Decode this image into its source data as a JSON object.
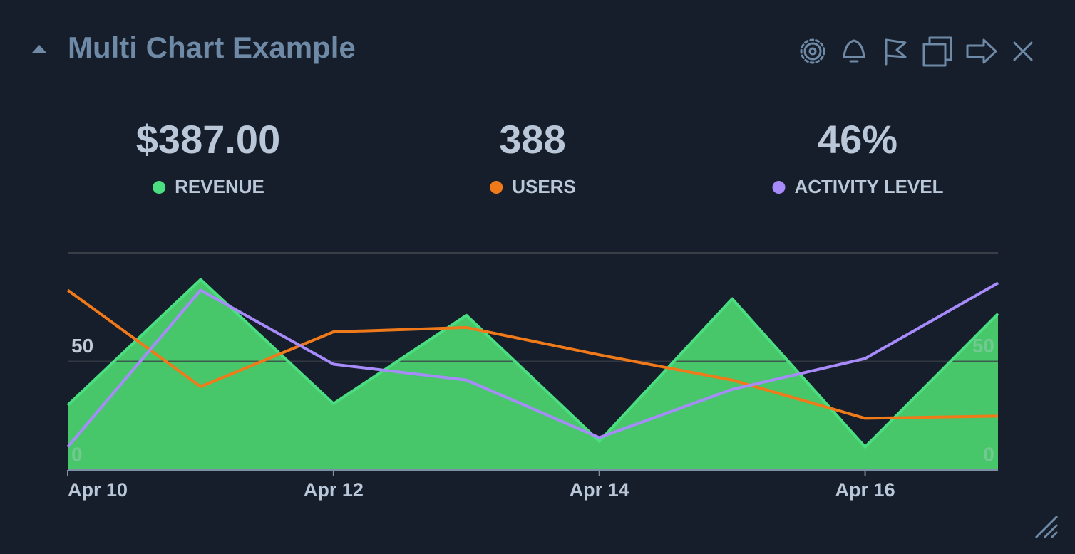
{
  "header": {
    "title": "Multi Chart Example"
  },
  "stats": [
    "$387.00",
    "388",
    "46%"
  ],
  "chart_data": {
    "type": "line",
    "categories": [
      "Apr 10",
      null,
      "Apr 12",
      null,
      "Apr 14",
      null,
      "Apr 16",
      null
    ],
    "series": [
      {
        "name": "REVENUE",
        "color": "#4ade80",
        "fill": "#47c76a",
        "values": [
          29.8,
          87.7,
          30.5,
          71.2,
          13.2,
          78.8,
          10.6,
          71.9
        ]
      },
      {
        "name": "USERS",
        "color": "#f07a1a",
        "values": [
          82.8,
          38.4,
          63.6,
          65.6,
          53.0,
          41.4,
          23.8,
          24.8
        ]
      },
      {
        "name": "ACTIVITY LEVEL",
        "color": "#a78bfa",
        "values": [
          10.6,
          82.8,
          48.7,
          41.4,
          14.9,
          37.1,
          51.3,
          86.1
        ]
      }
    ],
    "ylim": [
      0,
      100
    ],
    "yticks": [
      0,
      50
    ],
    "grid": true
  }
}
